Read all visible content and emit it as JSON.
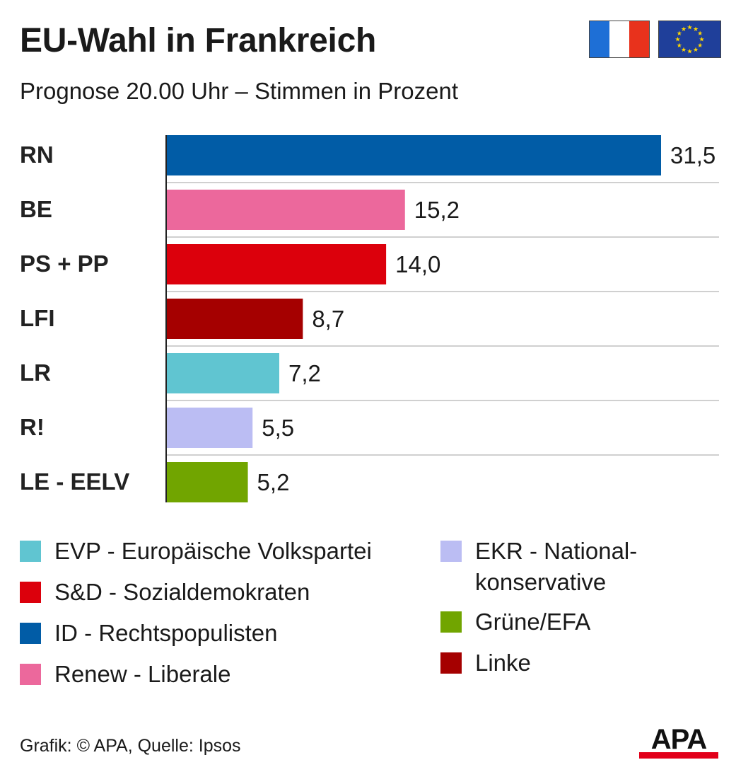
{
  "title": "EU-Wahl in Frankreich",
  "subtitle": "Prognose 20.00 Uhr – Stimmen in Prozent",
  "footer": "Grafik: © APA, Quelle: Ipsos",
  "logo": "APA",
  "icons": {
    "flag_france": "france-flag-icon",
    "flag_eu": "eu-flag-icon"
  },
  "chart_data": {
    "type": "bar",
    "orientation": "horizontal",
    "categories": [
      "RN",
      "BE",
      "PS + PP",
      "LFI",
      "LR",
      "R!",
      "LE - EELV"
    ],
    "values": [
      31.5,
      15.2,
      14.0,
      8.7,
      7.2,
      5.5,
      5.2
    ],
    "value_labels": [
      "31,5",
      "15,2",
      "14,0",
      "8,7",
      "7,2",
      "5,5",
      "5,2"
    ],
    "colors": [
      "#015ca6",
      "#ec689c",
      "#dc000c",
      "#a50000",
      "#60c5d1",
      "#bbbdf3",
      "#71a500"
    ],
    "xlim": [
      0,
      31.5
    ],
    "grid": false,
    "legend_placement": "bottom",
    "legend": [
      {
        "label": "EVP - Europäische Volkspartei",
        "color": "#60c5d1"
      },
      {
        "label": "S&D - Sozialdemokraten",
        "color": "#dc000c"
      },
      {
        "label": "ID - Rechtspopulisten",
        "color": "#015ca6"
      },
      {
        "label": "Renew - Liberale",
        "color": "#ec689c"
      },
      {
        "label": "EKR - National-\nkonservative",
        "color": "#bbbdf3"
      },
      {
        "label": "Grüne/EFA",
        "color": "#71a500"
      },
      {
        "label": "Linke",
        "color": "#a50000"
      }
    ]
  }
}
